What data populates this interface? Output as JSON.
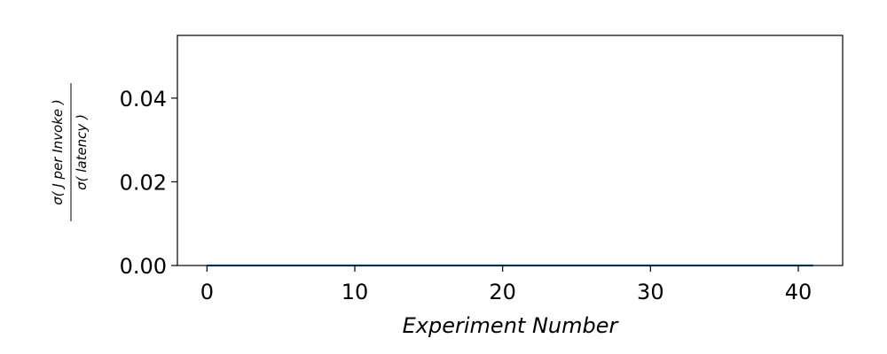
{
  "chart_data": {
    "type": "line",
    "title": "",
    "xlabel": "Experiment Number",
    "ylabel": {
      "numerator": "σ( J per Invoke )",
      "denominator": "σ( latency )"
    },
    "xlim": [
      -2,
      43
    ],
    "ylim": [
      0,
      0.055
    ],
    "x_ticks": [
      0,
      10,
      20,
      30,
      40
    ],
    "x_tick_labels": [
      "0",
      "10",
      "20",
      "30",
      "40"
    ],
    "y_ticks": [
      0,
      0.02,
      0.04
    ],
    "y_tick_labels": [
      "0.00",
      "0.02",
      "0.04"
    ],
    "grid": false,
    "series": [
      {
        "color": "#1f77b4",
        "x": [
          0,
          1,
          2,
          3,
          4,
          5,
          6,
          7,
          8,
          9,
          10,
          11,
          12,
          13,
          14,
          15,
          16,
          17,
          18,
          19,
          20,
          21,
          22,
          23,
          24,
          25,
          26,
          27,
          28,
          29,
          30,
          31,
          32,
          33,
          34,
          35,
          36,
          37,
          38,
          39,
          40,
          41
        ],
        "y": [
          0,
          0,
          0,
          0,
          0,
          0,
          0,
          0,
          0,
          0,
          0,
          0,
          0,
          0,
          0,
          0,
          0,
          0,
          0,
          0,
          0,
          0,
          0,
          0,
          0,
          0,
          0,
          0,
          0,
          0,
          0,
          0,
          0,
          0,
          0,
          0,
          0,
          0,
          0,
          0,
          0,
          0
        ]
      }
    ]
  }
}
